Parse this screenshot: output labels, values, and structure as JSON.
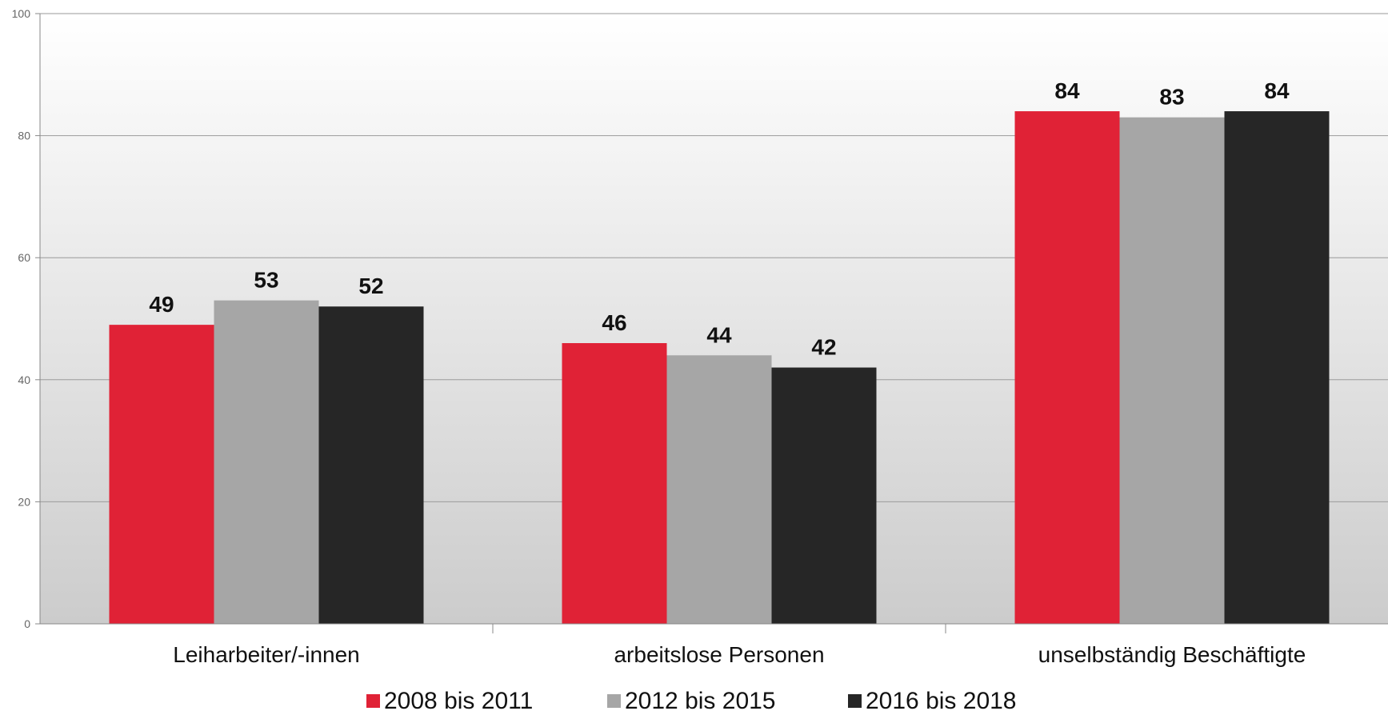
{
  "chart_data": {
    "type": "bar",
    "categories": [
      "Leiharbeiter/-innen",
      "arbeitslose Personen",
      "unselbständig Beschäftigte"
    ],
    "series": [
      {
        "name": "2008 bis 2011",
        "values": [
          49,
          46,
          84
        ],
        "color": "#e02236"
      },
      {
        "name": "2012 bis 2015",
        "values": [
          53,
          44,
          83
        ],
        "color": "#a6a6a6"
      },
      {
        "name": "2016 bis 2018",
        "values": [
          52,
          42,
          84
        ],
        "color": "#262626"
      }
    ],
    "y_ticks": [
      "0",
      "20",
      "40",
      "60",
      "80",
      "100"
    ],
    "ylim": [
      0,
      100
    ],
    "grid": true,
    "legend_position": "bottom",
    "background_gradient": [
      "#ffffff",
      "#cccccc"
    ]
  }
}
